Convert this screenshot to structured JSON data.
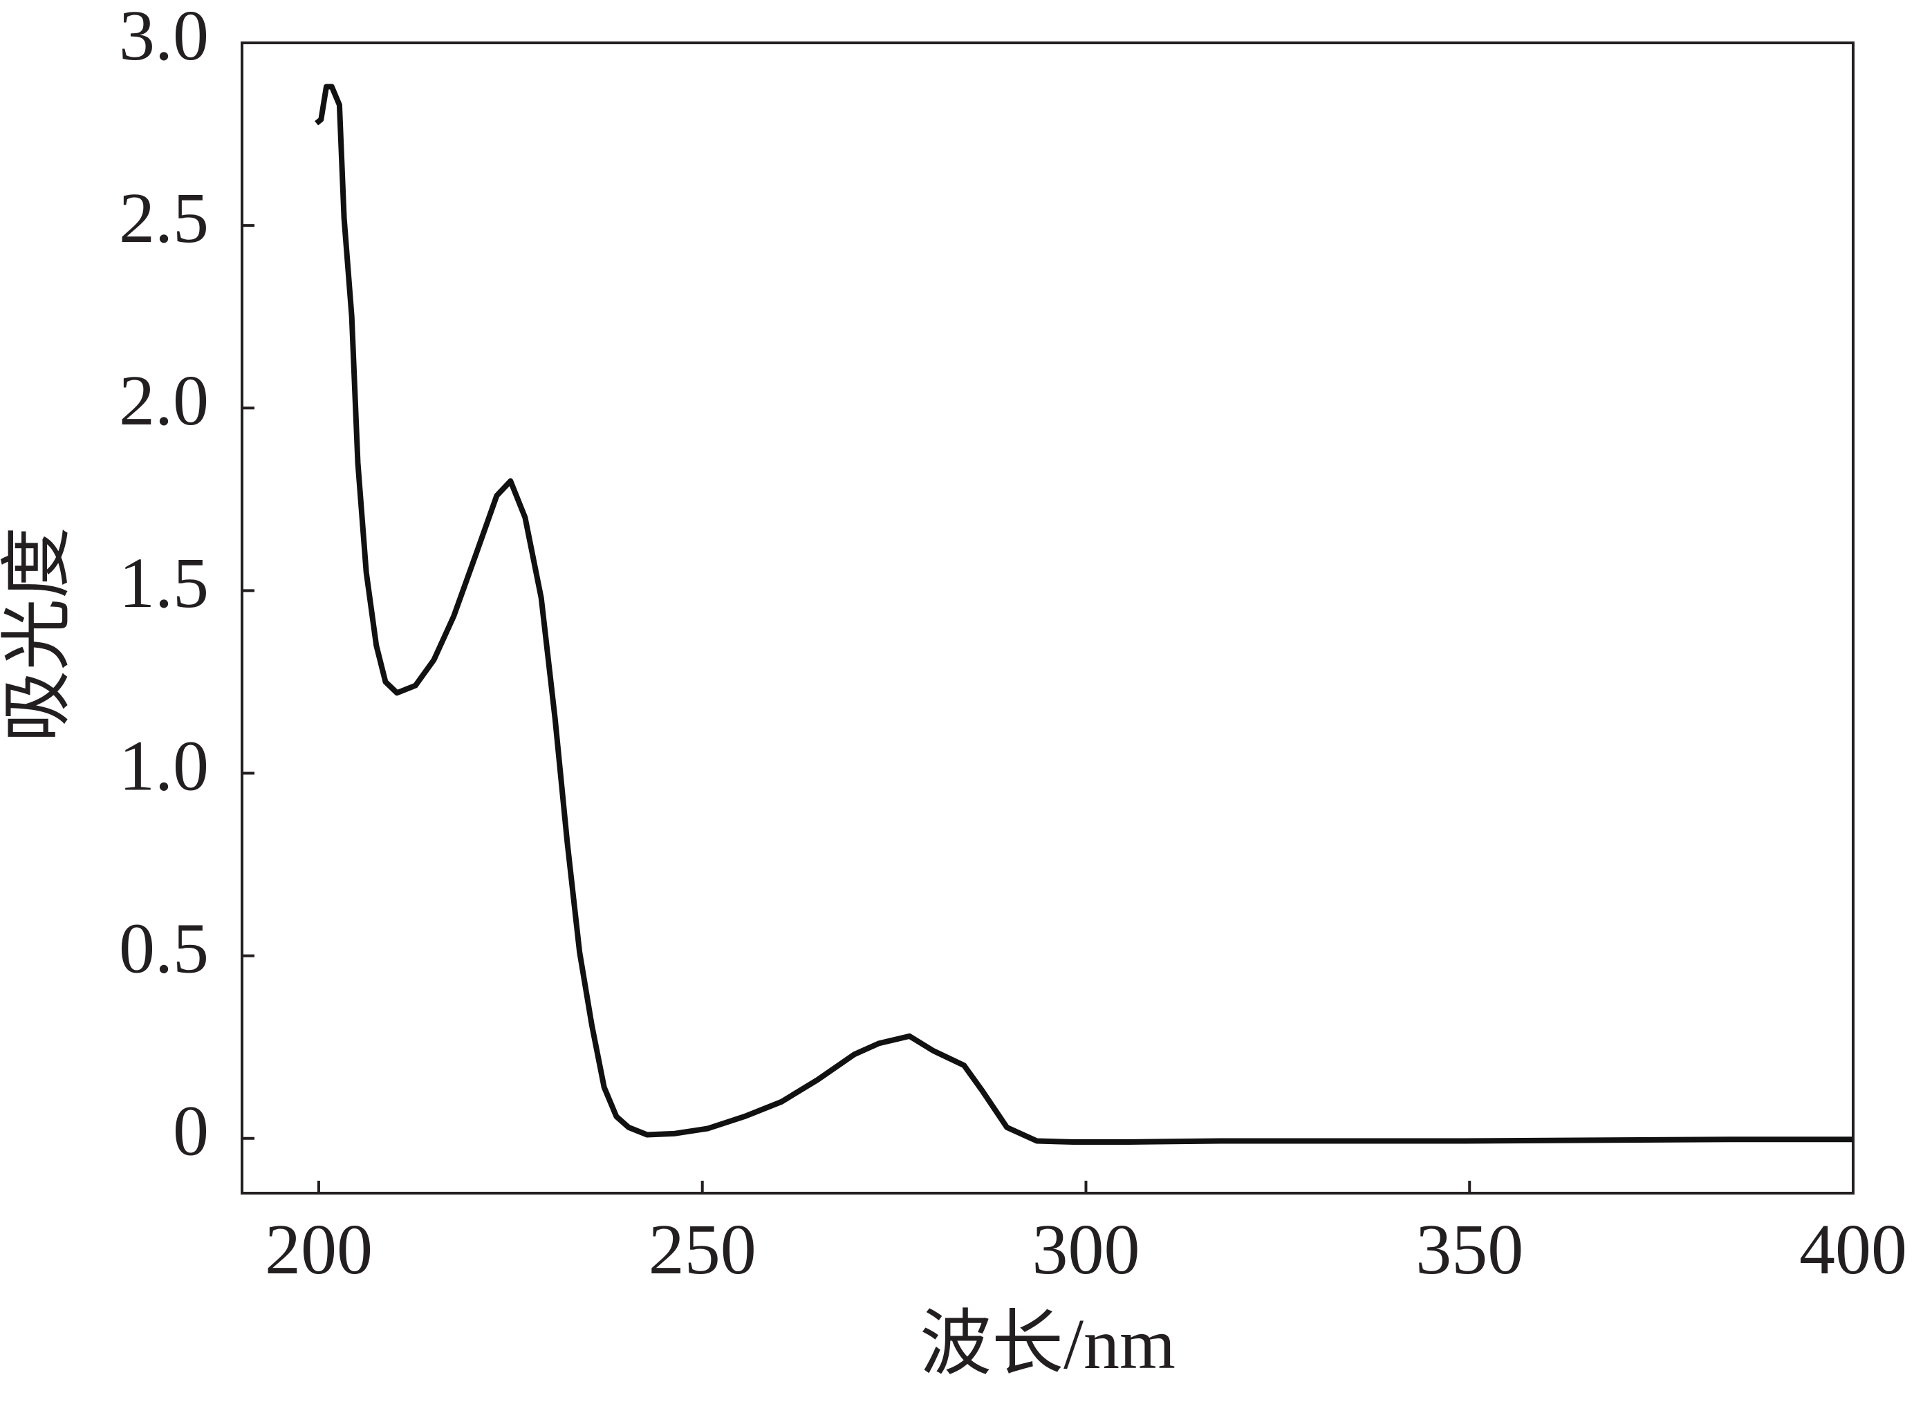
{
  "chart_data": {
    "type": "line",
    "xlabel": "波长/nm",
    "ylabel": "吸光度",
    "x": [
      199.7,
      200.3,
      201.0,
      201.7,
      202.7,
      203.3,
      204.3,
      205.1,
      206.2,
      207.5,
      208.7,
      210.2,
      212.6,
      215.0,
      217.6,
      220.5,
      223.2,
      225.0,
      226.9,
      229.0,
      230.8,
      232.4,
      234.0,
      235.6,
      237.2,
      238.8,
      240.4,
      242.8,
      246.3,
      250.7,
      255.5,
      260.3,
      265.0,
      269.8,
      273.0,
      277.0,
      280.1,
      284.1,
      286.5,
      289.7,
      293.6,
      298.4,
      305.6,
      317.5,
      349.3,
      383.9,
      399.9
    ],
    "series": [
      {
        "color": "#111111",
        "values": [
          2.78,
          2.79,
          2.88,
          2.88,
          2.83,
          2.52,
          2.25,
          1.85,
          1.55,
          1.35,
          1.25,
          1.22,
          1.24,
          1.31,
          1.43,
          1.6,
          1.76,
          1.8,
          1.7,
          1.48,
          1.15,
          0.81,
          0.51,
          0.31,
          0.14,
          0.06,
          0.03,
          0.01,
          0.013,
          0.027,
          0.06,
          0.1,
          0.16,
          0.23,
          0.26,
          0.28,
          0.24,
          0.2,
          0.13,
          0.03,
          -0.007,
          -0.01,
          -0.01,
          -0.007,
          -0.007,
          -0.003,
          -0.003
        ]
      }
    ],
    "xlim": [
      190,
      400
    ],
    "xticks": [
      200,
      250,
      300,
      350,
      400
    ],
    "ylim": [
      -0.15,
      3.0
    ],
    "yticks": [
      0,
      0.5,
      {
        "value": 1,
        "label": "1.0"
      },
      1.5,
      {
        "value": 2,
        "label": "2.0"
      },
      2.5,
      {
        "value": 3,
        "label": "3.0"
      }
    ],
    "grid": false
  }
}
